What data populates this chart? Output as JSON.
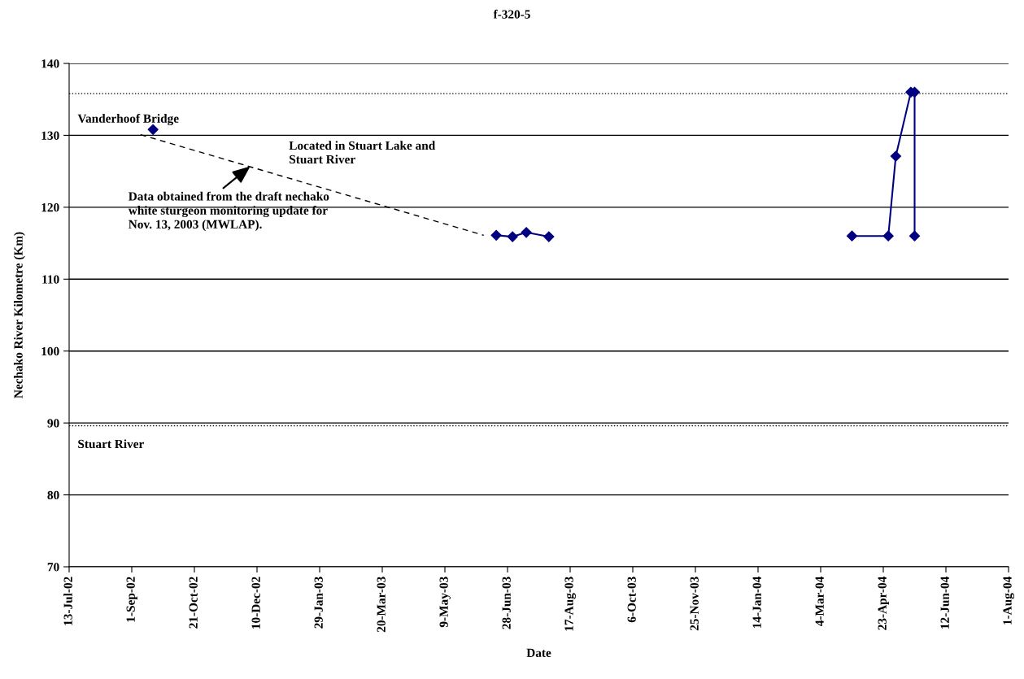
{
  "chart_data": {
    "type": "line",
    "title": "f-320-5",
    "xlabel": "Date",
    "ylabel": "Nechako River Kilometre (Km)",
    "series": [
      {
        "type": "scatter",
        "color": "#000080",
        "x": [
          "2002-09-18"
        ],
        "values": [
          130.8
        ]
      },
      {
        "color": "#000080",
        "x": [
          "2003-06-19",
          "2003-07-02",
          "2003-07-13",
          "2003-07-31"
        ],
        "values": [
          116.1,
          115.9,
          116.5,
          115.9
        ]
      },
      {
        "color": "#000080",
        "x": [
          "2004-03-29",
          "2004-04-27",
          "2004-05-03",
          "2004-05-15",
          "2004-05-18",
          "2004-05-18"
        ],
        "values": [
          116.0,
          116.0,
          127.1,
          136.0,
          136.0,
          116.0
        ]
      },
      {
        "type": "line",
        "color": "#000000",
        "marker": "none",
        "line_style": "dashed",
        "x": [
          "2002-09-08",
          "2003-06-09"
        ],
        "values": [
          130.1,
          116.1
        ]
      }
    ],
    "marker": "diamond",
    "ylim": [
      70,
      140
    ],
    "yticks": [
      70,
      80,
      90,
      100,
      110,
      120,
      130,
      140
    ],
    "xlim": [
      "2002-07-13",
      "2004-08-01"
    ],
    "xticks": [
      {
        "value": "2002-07-13",
        "label": "13-Jul-02"
      },
      {
        "value": "2002-09-01",
        "label": "1-Sep-02"
      },
      {
        "value": "2002-10-21",
        "label": "21-Oct-02"
      },
      {
        "value": "2002-12-10",
        "label": "10-Dec-02"
      },
      {
        "value": "2003-01-29",
        "label": "29-Jan-03"
      },
      {
        "value": "2003-03-20",
        "label": "20-Mar-03"
      },
      {
        "value": "2003-05-09",
        "label": "9-May-03"
      },
      {
        "value": "2003-06-28",
        "label": "28-Jun-03"
      },
      {
        "value": "2003-08-17",
        "label": "17-Aug-03"
      },
      {
        "value": "2003-10-06",
        "label": "6-Oct-03"
      },
      {
        "value": "2003-11-25",
        "label": "25-Nov-03"
      },
      {
        "value": "2004-01-14",
        "label": "14-Jan-04"
      },
      {
        "value": "2004-03-04",
        "label": "4-Mar-04"
      },
      {
        "value": "2004-04-23",
        "label": "23-Apr-04"
      },
      {
        "value": "2004-06-12",
        "label": "12-Jun-04"
      },
      {
        "value": "2004-08-01",
        "label": "1-Aug-04"
      }
    ],
    "grid": "y",
    "ref_lines": [
      {
        "axis": "y",
        "value": 135.8,
        "color": "#000000",
        "line_style": "dotted"
      },
      {
        "axis": "y",
        "value": 89.6,
        "label": "Stuart River",
        "color": "#000000",
        "line_style": "dotted"
      }
    ],
    "annotations": [
      "Vanderhoof Bridge",
      "Located in Stuart Lake and\nStuart River",
      {
        "text": "Data obtained from the draft nechako\nwhite sturgeon monitoring update for\nNov. 13, 2003 (MWLAP).",
        "x": "2002-12-06",
        "y": 125.9
      }
    ]
  }
}
